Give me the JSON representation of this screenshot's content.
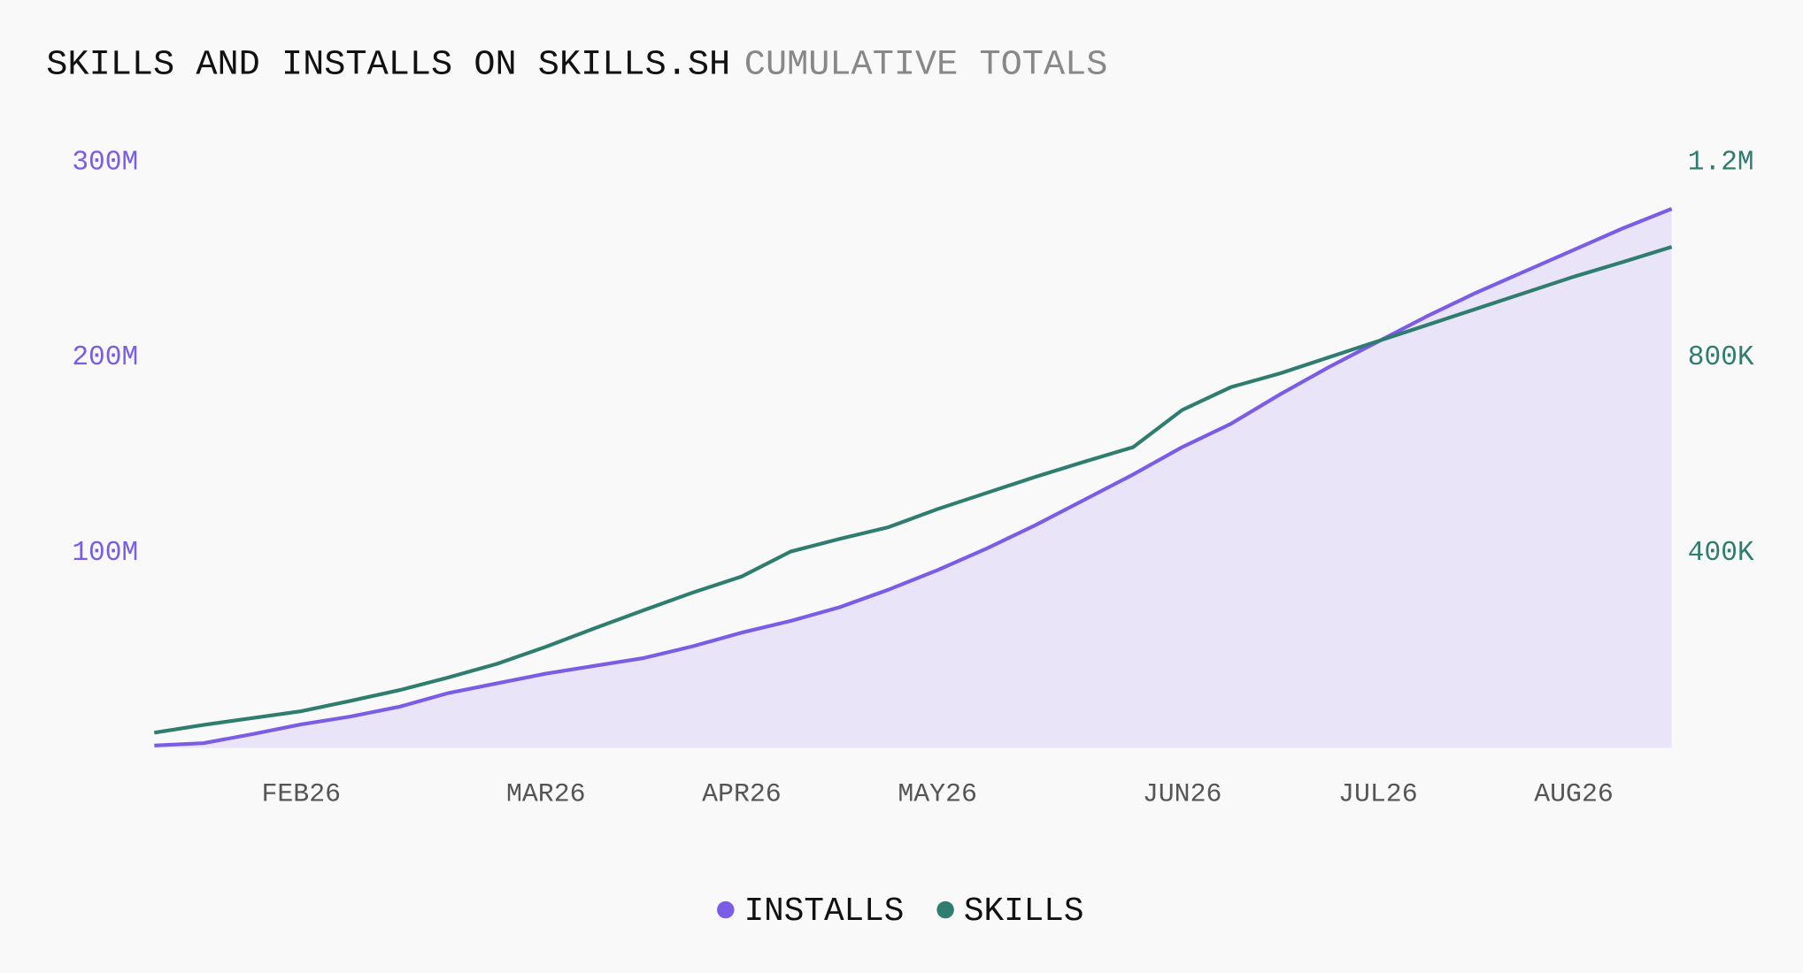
{
  "chart_data": {
    "type": "line",
    "title": "SKILLS AND INSTALLS ON SKILLS.SH",
    "subtitle": "CUMULATIVE TOTALS",
    "categories": [
      null,
      null,
      null,
      "FEB26",
      null,
      null,
      null,
      null,
      "MAR26",
      null,
      null,
      null,
      "APR26",
      null,
      null,
      null,
      "MAY26",
      null,
      null,
      null,
      null,
      "JUN26",
      null,
      null,
      null,
      "JUL26",
      null,
      null,
      null,
      "AUG26",
      null,
      null
    ],
    "series": [
      {
        "name": "INSTALLS",
        "color": "#7b5ce6",
        "area_color": "#e9e4f7",
        "axis": "y",
        "values": [
          1.2,
          2.4,
          7,
          12,
          16,
          21,
          28,
          33,
          38,
          42,
          46,
          52,
          59,
          65,
          72,
          81,
          91,
          102,
          114,
          127,
          140,
          154,
          166,
          181,
          195,
          208,
          221,
          233,
          244,
          255,
          266,
          276
        ]
      },
      {
        "name": "SKILLS",
        "color": "#2e7d6e",
        "axis": "y2",
        "values": [
          31,
          47,
          61,
          75,
          96,
          118,
          144,
          172,
          207,
          245,
          282,
          318,
          351,
          402,
          428,
          452,
          489,
          522,
          555,
          586,
          616,
          692,
          739,
          767,
          800,
          833,
          866,
          899,
          932,
          965,
          995,
          1026
        ]
      }
    ],
    "ylim": [
      0,
      300
    ],
    "yticks": [
      {
        "value": 100,
        "label": "100M"
      },
      {
        "value": 200,
        "label": "200M"
      },
      {
        "value": 300,
        "label": "300M"
      }
    ],
    "y2lim": [
      0,
      1200
    ],
    "y2ticks": [
      {
        "value": 400,
        "label": "400K"
      },
      {
        "value": 800,
        "label": "800K"
      },
      {
        "value": 1200,
        "label": "1.2M"
      }
    ],
    "grid": false,
    "legend": "bottom"
  }
}
